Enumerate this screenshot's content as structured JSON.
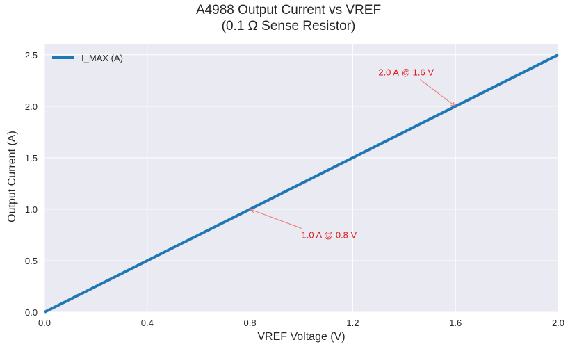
{
  "chart_data": {
    "type": "line",
    "title": "A4988 Output Current vs VREF",
    "subtitle": "(0.1 Ω Sense Resistor)",
    "xlabel": "VREF Voltage (V)",
    "ylabel": "Output Current (A)",
    "xlim": [
      0.0,
      2.0
    ],
    "ylim": [
      0.0,
      2.6
    ],
    "xticks": [
      "0.0",
      "0.4",
      "0.8",
      "1.2",
      "1.6",
      "2.0"
    ],
    "yticks": [
      "0.0",
      "0.5",
      "1.0",
      "1.5",
      "2.0",
      "2.5"
    ],
    "grid": true,
    "legend_position": "upper left",
    "series": [
      {
        "name": "I_MAX (A)",
        "color": "#1f77b4",
        "x": [
          0.0,
          2.0
        ],
        "y": [
          0.0,
          2.5
        ]
      }
    ],
    "annotations": [
      {
        "text": "1.0 A @ 0.8 V",
        "xy": [
          0.8,
          1.0
        ],
        "text_xy": [
          1.0,
          0.72
        ],
        "color": "#e31a1c"
      },
      {
        "text": "2.0 A @ 1.6 V",
        "xy": [
          1.6,
          2.0
        ],
        "text_xy": [
          1.3,
          2.3
        ],
        "color": "#e31a1c"
      }
    ]
  }
}
